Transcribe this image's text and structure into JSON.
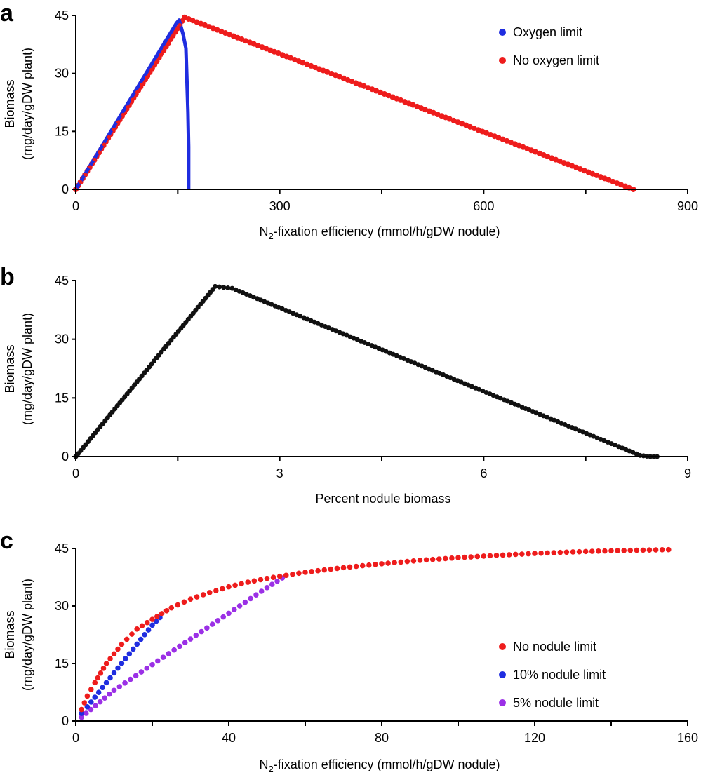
{
  "chart_data": [
    {
      "panel": "a",
      "type": "scatter",
      "xlabel": "N",
      "xlabel_sub": "2",
      "xlabel_rest": "-fixation efficiency (mmol/h/gDW nodule)",
      "ylabel_line1": "Biomass",
      "ylabel_line2": "(mg/day/gDW plant)",
      "xlim": [
        0,
        900
      ],
      "ylim": [
        0,
        45
      ],
      "xticks": [
        0,
        300,
        600,
        900
      ],
      "xticks_minor": [
        150,
        450,
        750
      ],
      "yticks": [
        0,
        15,
        30,
        45
      ],
      "legend_position": "top-right",
      "series": [
        {
          "name": "Oxygen limit",
          "color": "#1f2de0",
          "style": "line",
          "x": [
            0,
            148,
            152,
            158,
            162,
            165,
            166,
            166
          ],
          "y": [
            0,
            43.0,
            43.8,
            40.0,
            36.5,
            20.0,
            11.0,
            0
          ]
        },
        {
          "name": "No oxygen limit",
          "color": "#ee1c1c",
          "style": "dotted-line",
          "x": [
            0,
            160,
            820
          ],
          "y": [
            0,
            44.5,
            0
          ]
        }
      ]
    },
    {
      "panel": "b",
      "type": "scatter",
      "xlabel": "Percent nodule biomass",
      "ylabel_line1": "Biomass",
      "ylabel_line2": "(mg/day/gDW plant)",
      "xlim": [
        0,
        9
      ],
      "ylim": [
        0,
        45
      ],
      "xticks": [
        0,
        3,
        6,
        9
      ],
      "xticks_minor": [
        1.5,
        4.5,
        7.5
      ],
      "yticks": [
        0,
        15,
        30,
        45
      ],
      "series": [
        {
          "name": "Biomass",
          "color": "#111111",
          "style": "dotted-line",
          "x": [
            0,
            2.05,
            2.3,
            8.3,
            8.45,
            8.55
          ],
          "y": [
            0,
            43.5,
            43.0,
            0.3,
            0.0,
            0.0
          ]
        }
      ]
    },
    {
      "panel": "c",
      "type": "scatter",
      "xlabel": "N",
      "xlabel_sub": "2",
      "xlabel_rest": "-fixation efficiency (mmol/h/gDW nodule)",
      "ylabel_line1": "Biomass",
      "ylabel_line2": "(mg/day/gDW plant)",
      "xlim": [
        0,
        160
      ],
      "ylim": [
        0,
        45
      ],
      "xticks": [
        0,
        40,
        80,
        120,
        160
      ],
      "xticks_minor": [
        20,
        60,
        100,
        140
      ],
      "yticks": [
        0,
        15,
        30,
        45
      ],
      "legend_position": "bottom-right",
      "series": [
        {
          "name": "No nodule limit",
          "color": "#ee1c1c",
          "x": [
            1.5,
            3,
            5,
            8,
            12,
            16,
            20,
            25,
            30,
            35,
            40,
            45,
            50,
            55,
            60,
            70,
            80,
            90,
            100,
            110,
            120,
            130,
            140,
            150,
            155
          ],
          "y": [
            3,
            6.5,
            10,
            15,
            20,
            24,
            26.5,
            29.5,
            31.8,
            33.5,
            35,
            36.2,
            37.2,
            38.0,
            38.8,
            40.0,
            41.0,
            41.9,
            42.6,
            43.2,
            43.7,
            44.1,
            44.4,
            44.6,
            44.7
          ]
        },
        {
          "name": "10% nodule limit",
          "color": "#1f2de0",
          "x": [
            1.5,
            3,
            5,
            8,
            11,
            14,
            17,
            20,
            22
          ],
          "y": [
            2,
            3.7,
            6.2,
            10,
            13.8,
            17.5,
            21.3,
            25,
            27
          ]
        },
        {
          "name": "5% nodule limit",
          "color": "#9b30e6",
          "x": [
            1.5,
            10,
            20,
            30,
            40,
            50,
            54
          ],
          "y": [
            1,
            8,
            14.7,
            21.4,
            28.1,
            34.8,
            37.3
          ]
        }
      ]
    }
  ]
}
